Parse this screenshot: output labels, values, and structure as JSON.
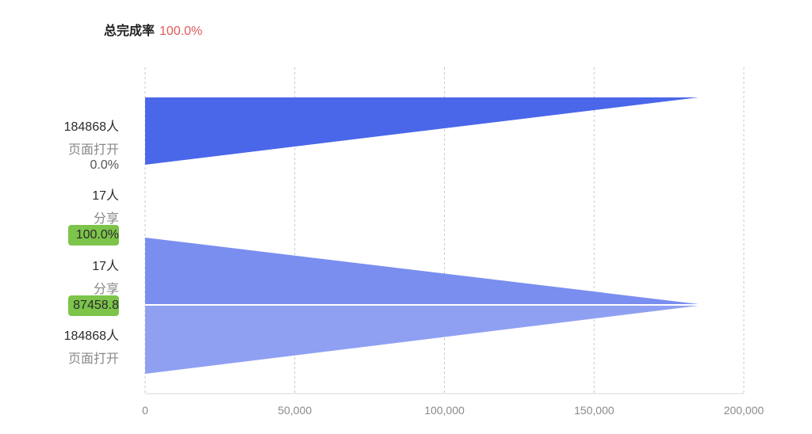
{
  "header": {
    "label": "总完成率",
    "value": "100.0%"
  },
  "chart_data": {
    "type": "bar",
    "orientation": "horizontal-funnel",
    "xlim": [
      0,
      200000
    ],
    "x_ticks": [
      "0",
      "50,000",
      "100,000",
      "150,000",
      "200,000"
    ],
    "grid": "vertical dashed",
    "upper_funnel": [
      {
        "count": "184868人",
        "name": "页面打开",
        "value": 184868
      },
      {
        "count": "17人",
        "name": "分享",
        "value": 17
      }
    ],
    "upper_rate": "0.0%",
    "upper_badge": "100.0%",
    "lower_funnel": [
      {
        "count": "17人",
        "name": "分享",
        "value": 17
      },
      {
        "count": "184868人",
        "name": "页面打开",
        "value": 184868
      }
    ],
    "lower_badge": "87458.8",
    "colors": {
      "upper": "#4a67ea",
      "lower_top": "#7a8ef0",
      "lower_bottom": "#8fa0f3",
      "badge": "#7cc44a"
    }
  }
}
